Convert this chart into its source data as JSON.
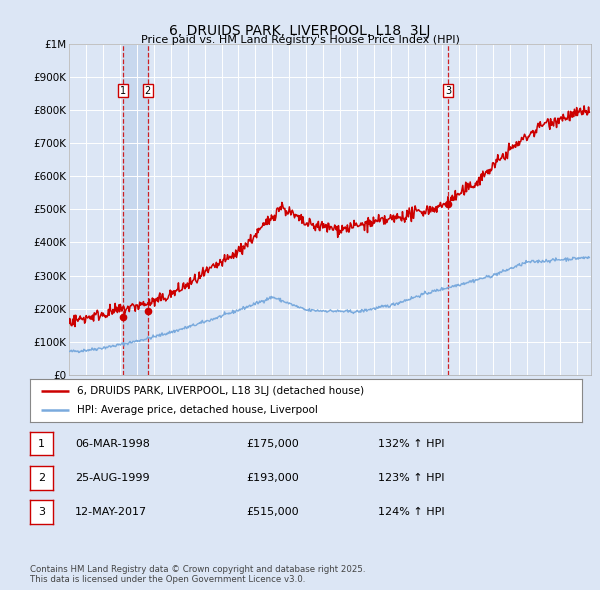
{
  "title": "6, DRUIDS PARK, LIVERPOOL, L18  3LJ",
  "subtitle": "Price paid vs. HM Land Registry's House Price Index (HPI)",
  "background_color": "#dce6f5",
  "plot_bg_color": "#dce6f5",
  "band_color": "#c8d8ee",
  "ylim": [
    0,
    1000000
  ],
  "yticks": [
    0,
    100000,
    200000,
    300000,
    400000,
    500000,
    600000,
    700000,
    800000,
    900000,
    1000000
  ],
  "ytick_labels": [
    "£0",
    "£100K",
    "£200K",
    "£300K",
    "£400K",
    "£500K",
    "£600K",
    "£700K",
    "£800K",
    "£900K",
    "£1M"
  ],
  "transactions": [
    {
      "date_num": 1998.17,
      "price": 175000,
      "label": "1"
    },
    {
      "date_num": 1999.65,
      "price": 193000,
      "label": "2"
    },
    {
      "date_num": 2017.36,
      "price": 515000,
      "label": "3"
    }
  ],
  "vlines": [
    1998.17,
    1999.65,
    2017.36
  ],
  "legend_line1": "6, DRUIDS PARK, LIVERPOOL, L18 3LJ (detached house)",
  "legend_line2": "HPI: Average price, detached house, Liverpool",
  "table_rows": [
    {
      "num": "1",
      "date": "06-MAR-1998",
      "price": "£175,000",
      "hpi": "132% ↑ HPI"
    },
    {
      "num": "2",
      "date": "25-AUG-1999",
      "price": "£193,000",
      "hpi": "123% ↑ HPI"
    },
    {
      "num": "3",
      "date": "12-MAY-2017",
      "price": "£515,000",
      "hpi": "124% ↑ HPI"
    }
  ],
  "footer": "Contains HM Land Registry data © Crown copyright and database right 2025.\nThis data is licensed under the Open Government Licence v3.0.",
  "red_color": "#cc0000",
  "blue_color": "#7aaadd",
  "xmin": 1995,
  "xmax": 2025.8
}
